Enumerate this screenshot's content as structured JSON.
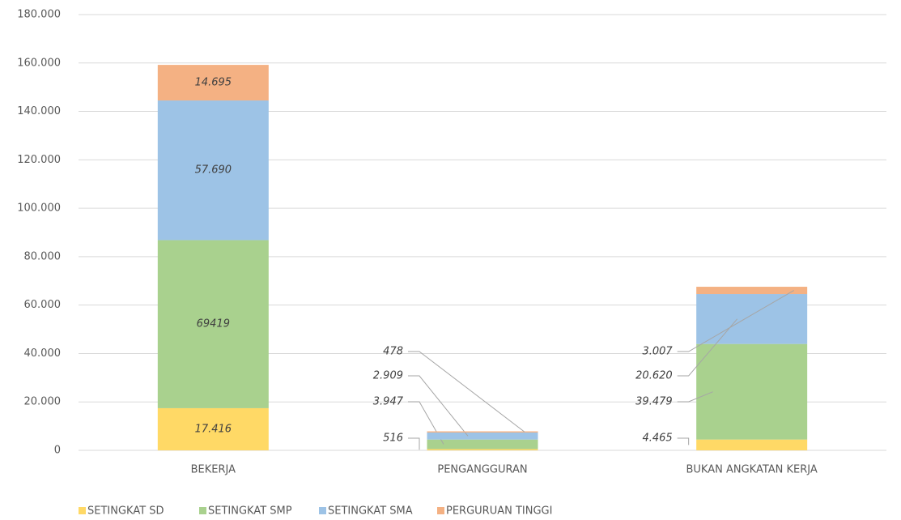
{
  "chart_data": {
    "type": "stacked_bar",
    "categories": [
      "BEKERJA",
      "PENGANGGURAN",
      "BUKAN ANGKATAN KERJA"
    ],
    "series": [
      {
        "name": "SETINGKAT SD",
        "color": "#ffd966",
        "values": [
          17416,
          516,
          4465
        ],
        "value_labels": [
          "17.416",
          "516",
          "4.465"
        ]
      },
      {
        "name": "SETINGKAT SMP",
        "color": "#a9d18e",
        "values": [
          69419,
          3947,
          39479
        ],
        "value_labels": [
          "69419",
          "3.947",
          "39.479"
        ]
      },
      {
        "name": "SETINGKAT SMA",
        "color": "#9dc3e6",
        "values": [
          57690,
          2909,
          20620
        ],
        "value_labels": [
          "57.690",
          "2.909",
          "20.620"
        ]
      },
      {
        "name": "PERGURUAN TINGGI",
        "color": "#f4b183",
        "values": [
          14695,
          478,
          3007
        ],
        "value_labels": [
          "14.695",
          "478",
          "3.007"
        ]
      }
    ],
    "ylim": [
      0,
      180000
    ],
    "yticks": [
      0,
      {
        "value": 20000,
        "label": "20.000"
      },
      {
        "value": 40000,
        "label": "40.000"
      },
      {
        "value": 60000,
        "label": "60.000"
      },
      {
        "value": 80000,
        "label": "80.000"
      },
      {
        "value": 100000,
        "label": "100.000"
      },
      {
        "value": 120000,
        "label": "120.000"
      },
      {
        "value": 140000,
        "label": "140.000"
      },
      {
        "value": 160000,
        "label": "160.000"
      },
      {
        "value": 180000,
        "label": "180.000"
      }
    ],
    "grid": true,
    "legend": "bottom-left"
  }
}
